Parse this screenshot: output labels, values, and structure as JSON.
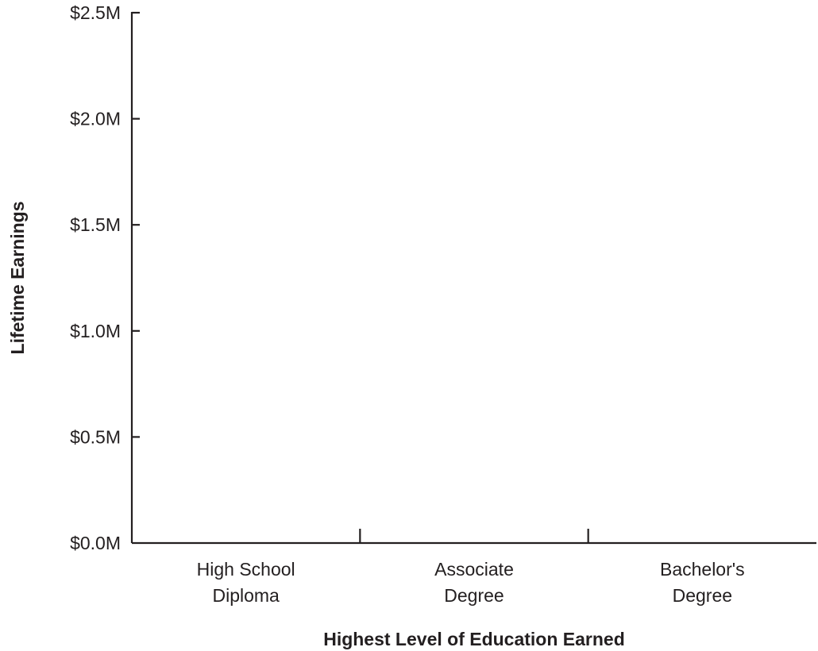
{
  "chart_data": {
    "type": "bar",
    "title": "",
    "xlabel": "Highest Level of Education Earned",
    "ylabel": "Lifetime Earnings",
    "categories": [
      [
        "High School",
        "Diploma"
      ],
      [
        "Associate",
        "Degree"
      ],
      [
        "Bachelor's",
        "Degree"
      ]
    ],
    "values": [
      null,
      null,
      null
    ],
    "ylim": [
      0,
      2.5
    ],
    "y_ticks": [
      0.0,
      0.5,
      1.0,
      1.5,
      2.0,
      2.5
    ],
    "y_tick_labels": [
      "$0.0M",
      "$0.5M",
      "$1.0M",
      "$1.5M",
      "$2.0M",
      "$2.5M"
    ],
    "grid": false,
    "legend": "none",
    "colors": {
      "axis": "#231f20",
      "text": "#231f20",
      "background": "#ffffff"
    }
  }
}
